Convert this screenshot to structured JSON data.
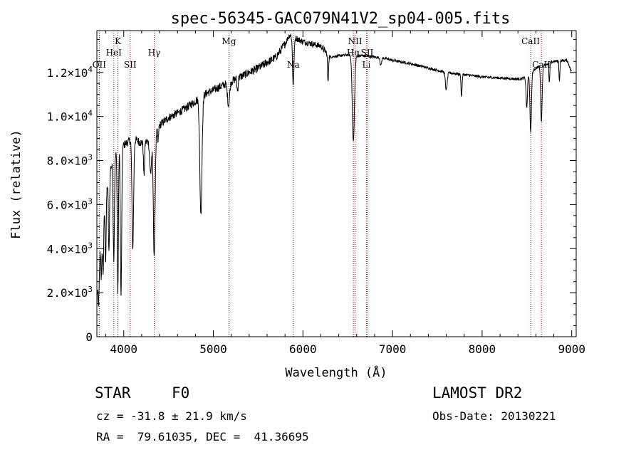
{
  "chart_data": {
    "type": "line",
    "title": "spec-56345-GAC079N41V2_sp04-005.fits",
    "xlabel": "Wavelength (Å)",
    "ylabel": "Flux (relative)",
    "xlim": [
      3700,
      9050
    ],
    "ylim": [
      0,
      13900
    ],
    "grid": false,
    "x_ticks": [
      {
        "value": 4000,
        "label": "4000"
      },
      {
        "value": 5000,
        "label": "5000"
      },
      {
        "value": 6000,
        "label": "6000"
      },
      {
        "value": 7000,
        "label": "7000"
      },
      {
        "value": 8000,
        "label": "8000"
      },
      {
        "value": 9000,
        "label": "9000"
      }
    ],
    "y_ticks": [
      {
        "value": 0,
        "mant": "0",
        "exp": ""
      },
      {
        "value": 2000,
        "mant": "2.0×10",
        "exp": "3"
      },
      {
        "value": 4000,
        "mant": "4.0×10",
        "exp": "3"
      },
      {
        "value": 6000,
        "mant": "6.0×10",
        "exp": "3"
      },
      {
        "value": 8000,
        "mant": "8.0×10",
        "exp": "3"
      },
      {
        "value": 10000,
        "mant": "1.0×10",
        "exp": "4"
      },
      {
        "value": 12000,
        "mant": "1.2×10",
        "exp": "4"
      }
    ],
    "spectrum": {
      "continuum": [
        [
          3700,
          2000
        ],
        [
          3720,
          3600
        ],
        [
          3760,
          5000
        ],
        [
          3800,
          6500
        ],
        [
          3850,
          7600
        ],
        [
          3900,
          8200
        ],
        [
          4000,
          8700
        ],
        [
          4100,
          9000
        ],
        [
          4200,
          8800
        ],
        [
          4300,
          8900
        ],
        [
          4400,
          9600
        ],
        [
          4500,
          9950
        ],
        [
          4600,
          10150
        ],
        [
          4700,
          10400
        ],
        [
          4800,
          10700
        ],
        [
          4900,
          11000
        ],
        [
          5000,
          11200
        ],
        [
          5100,
          11400
        ],
        [
          5200,
          11600
        ],
        [
          5300,
          11800
        ],
        [
          5400,
          12000
        ],
        [
          5500,
          12200
        ],
        [
          5600,
          12450
        ],
        [
          5700,
          12700
        ],
        [
          5800,
          13300
        ],
        [
          5850,
          13700
        ],
        [
          5900,
          13600
        ],
        [
          5950,
          13500
        ],
        [
          6000,
          13400
        ],
        [
          6100,
          13300
        ],
        [
          6200,
          13200
        ],
        [
          6300,
          12700
        ],
        [
          6400,
          12750
        ],
        [
          6500,
          12800
        ],
        [
          6600,
          12750
        ],
        [
          6700,
          12750
        ],
        [
          6800,
          12700
        ],
        [
          6900,
          12650
        ],
        [
          7000,
          12550
        ],
        [
          7200,
          12400
        ],
        [
          7400,
          12200
        ],
        [
          7600,
          12000
        ],
        [
          7800,
          11900
        ],
        [
          8000,
          11800
        ],
        [
          8200,
          11750
        ],
        [
          8400,
          11700
        ],
        [
          8500,
          11750
        ],
        [
          8600,
          12200
        ],
        [
          8800,
          12500
        ],
        [
          8950,
          12550
        ],
        [
          9000,
          12000
        ]
      ],
      "absorption_lines": [
        {
          "center": 3720,
          "depth": 2000,
          "width": 8
        },
        {
          "center": 3750,
          "depth": 2000,
          "width": 6
        },
        {
          "center": 3770,
          "depth": 2500,
          "width": 6
        },
        {
          "center": 3798,
          "depth": 3000,
          "width": 6
        },
        {
          "center": 3835,
          "depth": 3500,
          "width": 6
        },
        {
          "center": 3889,
          "depth": 4500,
          "width": 7
        },
        {
          "center": 3934,
          "depth": 6500,
          "width": 6
        },
        {
          "center": 3970,
          "depth": 6800,
          "width": 7
        },
        {
          "center": 4101,
          "depth": 5000,
          "width": 9
        },
        {
          "center": 4226,
          "depth": 1500,
          "width": 6
        },
        {
          "center": 4300,
          "depth": 1500,
          "width": 10
        },
        {
          "center": 4340,
          "depth": 5500,
          "width": 10
        },
        {
          "center": 4383,
          "depth": 700,
          "width": 5
        },
        {
          "center": 4861,
          "depth": 5300,
          "width": 12
        },
        {
          "center": 5170,
          "depth": 1000,
          "width": 12
        },
        {
          "center": 5270,
          "depth": 600,
          "width": 6
        },
        {
          "center": 5892,
          "depth": 2200,
          "width": 8
        },
        {
          "center": 6280,
          "depth": 1300,
          "width": 5
        },
        {
          "center": 6563,
          "depth": 3900,
          "width": 12
        },
        {
          "center": 6870,
          "depth": 350,
          "width": 8
        },
        {
          "center": 7600,
          "depth": 800,
          "width": 10
        },
        {
          "center": 7770,
          "depth": 1000,
          "width": 6
        },
        {
          "center": 8498,
          "depth": 1400,
          "width": 7
        },
        {
          "center": 8542,
          "depth": 2700,
          "width": 8
        },
        {
          "center": 8662,
          "depth": 2500,
          "width": 8
        },
        {
          "center": 8750,
          "depth": 900,
          "width": 5
        },
        {
          "center": 8863,
          "depth": 900,
          "width": 5
        }
      ]
    },
    "line_markers": [
      {
        "label": "OII",
        "wavelength": 3727,
        "row": 3
      },
      {
        "label": "HeI",
        "wavelength": 3889,
        "row": 2
      },
      {
        "label": "K",
        "wavelength": 3934,
        "row": 1
      },
      {
        "label": "SII",
        "wavelength": 4072,
        "row": 3
      },
      {
        "label": "Hγ",
        "wavelength": 4340,
        "row": 2
      },
      {
        "label": "Mg",
        "wavelength": 5175,
        "row": 1
      },
      {
        "label": "Na",
        "wavelength": 5893,
        "row": 3
      },
      {
        "label": "NII",
        "wavelength": 6583,
        "row": 1
      },
      {
        "label": "Hα",
        "wavelength": 6563,
        "row": 2
      },
      {
        "label": "SII",
        "wavelength": 6717,
        "row": 2
      },
      {
        "label": "Li",
        "wavelength": 6708,
        "row": 3
      },
      {
        "label": "CaII",
        "wavelength": 8542,
        "row": 1
      },
      {
        "label": "CaII",
        "wavelength": 8662,
        "row": 3
      }
    ],
    "marker_color": "#8b0000"
  },
  "info": {
    "object_class": "STAR",
    "subclass": "F0",
    "survey": "LAMOST DR2",
    "cz": "cz = -31.8 ± 21.9 km/s",
    "obs_date": "Obs-Date: 20130221",
    "coords": "RA =  79.61035, DEC =  41.36695"
  }
}
